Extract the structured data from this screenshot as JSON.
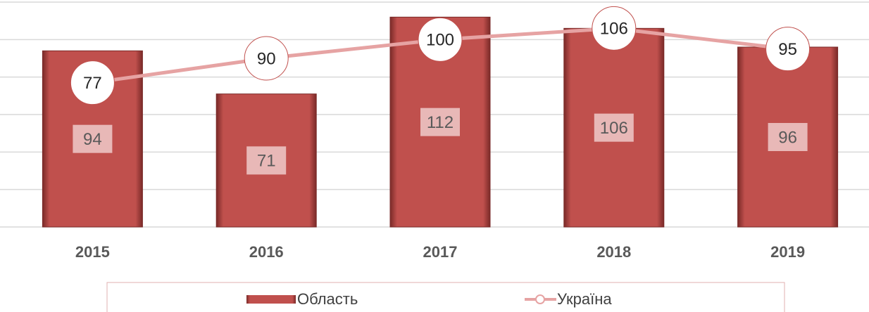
{
  "chart_data": {
    "type": "bar",
    "categories": [
      "2015",
      "2016",
      "2017",
      "2018",
      "2019"
    ],
    "series": [
      {
        "name": "Область",
        "type": "bar",
        "color": "#c0504d",
        "values": [
          94,
          71,
          112,
          106,
          96
        ]
      },
      {
        "name": "Україна",
        "type": "line",
        "color": "#e6a3a3",
        "values": [
          77,
          90,
          100,
          106,
          95
        ]
      }
    ],
    "ylim": [
      0,
      120
    ],
    "yticks": [
      0,
      20,
      40,
      60,
      80,
      100,
      120
    ],
    "grid": true,
    "legend": "bottom"
  }
}
